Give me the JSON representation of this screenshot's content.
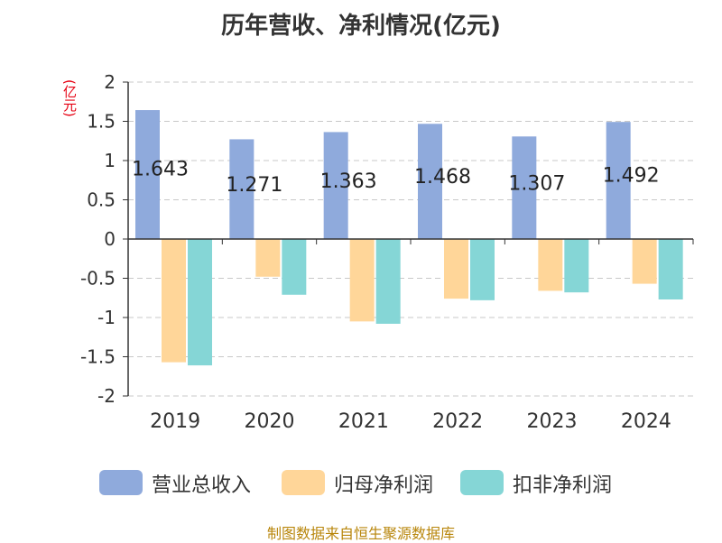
{
  "title": "历年营收、净利情况(亿元)",
  "unit_label": "(亿元)",
  "source": "制图数据来自恒生聚源数据库",
  "colors": {
    "revenue": "#8faadc",
    "net_profit": "#ffd699",
    "deducted_net_profit": "#85d6d6",
    "grid": "#c8c8c8",
    "axis": "#333333",
    "unit": "#e60012",
    "source": "#b8860b"
  },
  "legend": [
    {
      "label": "营业总收入",
      "color": "#8faadc"
    },
    {
      "label": "归母净利润",
      "color": "#ffd699"
    },
    {
      "label": "扣非净利润",
      "color": "#85d6d6"
    }
  ],
  "chart_data": {
    "type": "bar",
    "title": "历年营收、净利情况(亿元)",
    "xlabel": "",
    "ylabel": "(亿元)",
    "categories": [
      "2019",
      "2020",
      "2021",
      "2022",
      "2023",
      "2024"
    ],
    "ylim": [
      -2,
      2
    ],
    "yticks": [
      2,
      1.5,
      1,
      0.5,
      0,
      -0.5,
      -1,
      -1.5,
      -2
    ],
    "ytick_labels": [
      "2",
      "1.5",
      "1",
      "0.5",
      "0",
      "-0.5",
      "-1",
      "-1.5",
      "-2"
    ],
    "grid": true,
    "legend_position": "bottom",
    "series": [
      {
        "name": "营业总收入",
        "values": [
          1.643,
          1.271,
          1.363,
          1.468,
          1.307,
          1.492
        ],
        "data_labels": [
          "1.643",
          "1.271",
          "1.363",
          "1.468",
          "1.307",
          "1.492"
        ]
      },
      {
        "name": "归母净利润",
        "values": [
          -1.57,
          -0.48,
          -1.05,
          -0.76,
          -0.66,
          -0.57
        ]
      },
      {
        "name": "扣非净利润",
        "values": [
          -1.61,
          -0.71,
          -1.08,
          -0.78,
          -0.68,
          -0.77
        ]
      }
    ]
  }
}
